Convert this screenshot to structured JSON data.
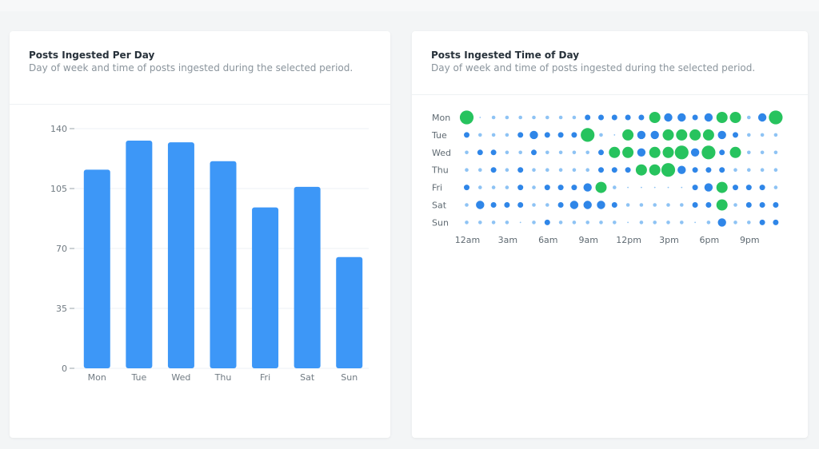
{
  "cards": {
    "per_day": {
      "title": "Posts Ingested Per Day",
      "subtitle": "Day of week and time of posts ingested during the selected period."
    },
    "time_of_day": {
      "title": "Posts Ingested Time of Day",
      "subtitle": "Day of week and time of posts ingested during the selected period."
    }
  },
  "colors": {
    "bar": "#3d97f7",
    "dot_strong": "#2f86e8",
    "dot_light": "#8ec3f4",
    "dot_peak": "#27c35e",
    "grid": "#eef1f4"
  },
  "chart_data": [
    {
      "type": "bar",
      "title": "Posts Ingested Per Day",
      "categories": [
        "Mon",
        "Tue",
        "Wed",
        "Thu",
        "Fri",
        "Sat",
        "Sun"
      ],
      "values": [
        116,
        133,
        132,
        121,
        94,
        106,
        65
      ],
      "ylim": [
        0,
        140
      ],
      "yticks": [
        0,
        35,
        70,
        105,
        140
      ],
      "grid": true
    },
    {
      "type": "scatter",
      "title": "Posts Ingested Time of Day",
      "rows": [
        "Mon",
        "Tue",
        "Wed",
        "Thu",
        "Fri",
        "Sat",
        "Sun"
      ],
      "x_tick_labels": [
        "12am",
        "3am",
        "6am",
        "9am",
        "12pm",
        "3pm",
        "6pm",
        "9pm"
      ],
      "hours": 24,
      "levels": [
        [
          5,
          0,
          1,
          1,
          1,
          1,
          1,
          1,
          1,
          2,
          2,
          2,
          2,
          2,
          4,
          3,
          3,
          2,
          3,
          4,
          4,
          1,
          3,
          5
        ],
        [
          2,
          1,
          1,
          1,
          2,
          3,
          2,
          2,
          2,
          5,
          1,
          0,
          4,
          3,
          3,
          4,
          4,
          4,
          4,
          3,
          2,
          1,
          1,
          1
        ],
        [
          1,
          2,
          2,
          1,
          1,
          2,
          1,
          1,
          1,
          1,
          2,
          4,
          4,
          3,
          4,
          4,
          5,
          3,
          5,
          2,
          4,
          1,
          1,
          1
        ],
        [
          1,
          1,
          2,
          1,
          2,
          1,
          1,
          1,
          1,
          1,
          2,
          2,
          2,
          4,
          4,
          5,
          3,
          2,
          2,
          2,
          1,
          1,
          1,
          1
        ],
        [
          2,
          1,
          1,
          1,
          2,
          1,
          2,
          2,
          2,
          3,
          4,
          1,
          0,
          0,
          0,
          0,
          0,
          2,
          3,
          4,
          2,
          2,
          2,
          1
        ],
        [
          1,
          3,
          2,
          2,
          2,
          1,
          1,
          2,
          3,
          3,
          3,
          2,
          1,
          1,
          1,
          1,
          1,
          2,
          2,
          4,
          1,
          2,
          2,
          2
        ],
        [
          1,
          1,
          1,
          1,
          0,
          1,
          2,
          1,
          1,
          1,
          1,
          1,
          0,
          1,
          1,
          1,
          1,
          0,
          1,
          3,
          1,
          1,
          2,
          2
        ]
      ],
      "peak_level": 4
    }
  ]
}
